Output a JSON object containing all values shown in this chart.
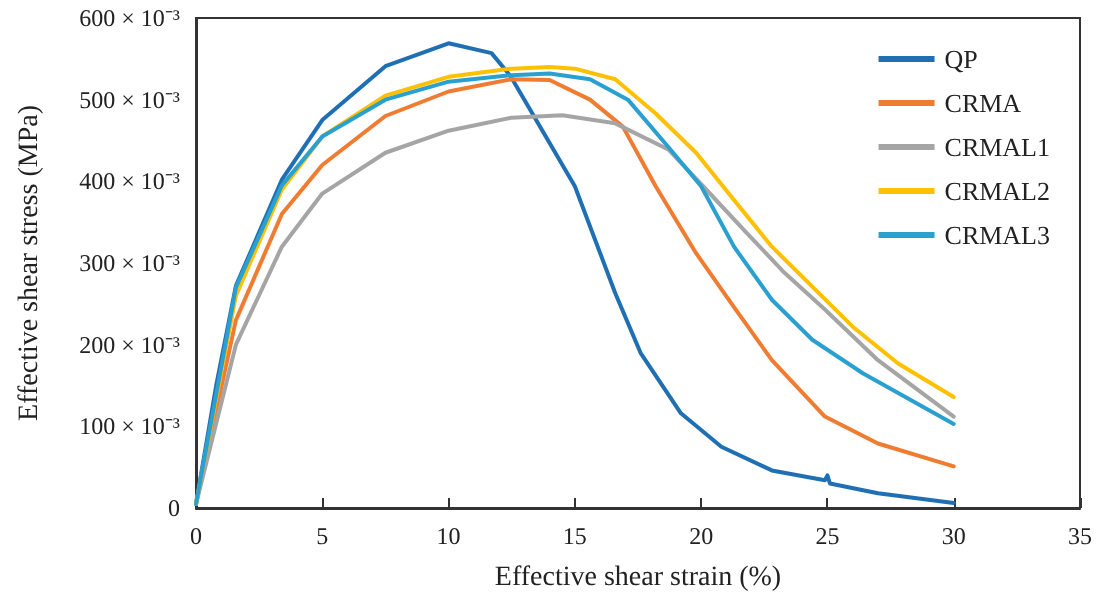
{
  "chart_data": {
    "type": "line",
    "xlabel": "Effective shear strain (%)",
    "ylabel": "Effective shear stress (MPa)",
    "xlim": [
      0,
      35
    ],
    "xticks": [
      0,
      5,
      10,
      15,
      20,
      25,
      30,
      35
    ],
    "ylim": [
      0,
      0.6
    ],
    "yticks": [
      0,
      {
        "value": 0.1,
        "label": "100 × 10⁻³"
      },
      {
        "value": 0.2,
        "label": "200 × 10⁻³"
      },
      {
        "value": 0.3,
        "label": "300 × 10⁻³"
      },
      {
        "value": 0.4,
        "label": "400 × 10⁻³"
      },
      {
        "value": 0.5,
        "label": "500 × 10⁻³"
      },
      {
        "value": 0.6,
        "label": "600 × 10⁻³"
      }
    ],
    "grid": false,
    "legend": "top right",
    "marker": "none",
    "line_style": "solid",
    "series": [
      {
        "name": "QP",
        "color": "#1f6fb4",
        "x": [
          0,
          0.8,
          1.58,
          3.4,
          5,
          7.5,
          10,
          11.7,
          12.45,
          15,
          16.6,
          17.6,
          19.2,
          20.8,
          22.8,
          24.9,
          25,
          25.1,
          27,
          30
        ],
        "values": [
          0.005,
          0.15,
          0.272,
          0.402,
          0.475,
          0.541,
          0.569,
          0.557,
          0.529,
          0.394,
          0.263,
          0.19,
          0.116,
          0.075,
          0.046,
          0.034,
          0.04,
          0.03,
          0.018,
          0.006
        ]
      },
      {
        "name": "CRMA",
        "color": "#f07c32",
        "x": [
          0,
          1.58,
          3.4,
          5,
          7.5,
          10,
          12.5,
          14,
          15.6,
          16.9,
          18.2,
          19.8,
          21.3,
          22.8,
          24.9,
          27,
          30
        ],
        "values": [
          0.005,
          0.23,
          0.36,
          0.42,
          0.48,
          0.51,
          0.525,
          0.524,
          0.5,
          0.467,
          0.394,
          0.312,
          0.246,
          0.181,
          0.112,
          0.079,
          0.051
        ]
      },
      {
        "name": "CRMAL1",
        "color": "#a5a5a5",
        "x": [
          0,
          1.58,
          3.4,
          5,
          7.5,
          10,
          12.5,
          14.5,
          16.6,
          18.7,
          20.2,
          21.8,
          23.3,
          24.9,
          27,
          30
        ],
        "values": [
          0.005,
          0.2,
          0.32,
          0.385,
          0.435,
          0.462,
          0.478,
          0.481,
          0.471,
          0.439,
          0.39,
          0.337,
          0.288,
          0.243,
          0.181,
          0.112
        ]
      },
      {
        "name": "CRMAL2",
        "color": "#ffc000",
        "x": [
          0,
          1.58,
          3.4,
          5,
          7.5,
          10,
          12.5,
          14,
          15,
          16.6,
          18.2,
          19.8,
          21.3,
          22.8,
          24.4,
          26,
          27.8,
          30
        ],
        "values": [
          0.005,
          0.26,
          0.39,
          0.455,
          0.505,
          0.528,
          0.538,
          0.54,
          0.538,
          0.525,
          0.483,
          0.435,
          0.377,
          0.32,
          0.271,
          0.222,
          0.177,
          0.136
        ]
      },
      {
        "name": "CRMAL3",
        "color": "#2aa0d0",
        "x": [
          0,
          1.58,
          3.4,
          5,
          7.5,
          10,
          12.5,
          14,
          15.6,
          17.1,
          18.7,
          20,
          21.3,
          22.8,
          24.4,
          26.4,
          30
        ],
        "values": [
          0.005,
          0.27,
          0.395,
          0.455,
          0.5,
          0.522,
          0.53,
          0.532,
          0.525,
          0.5,
          0.442,
          0.394,
          0.32,
          0.255,
          0.206,
          0.165,
          0.103
        ]
      }
    ]
  }
}
